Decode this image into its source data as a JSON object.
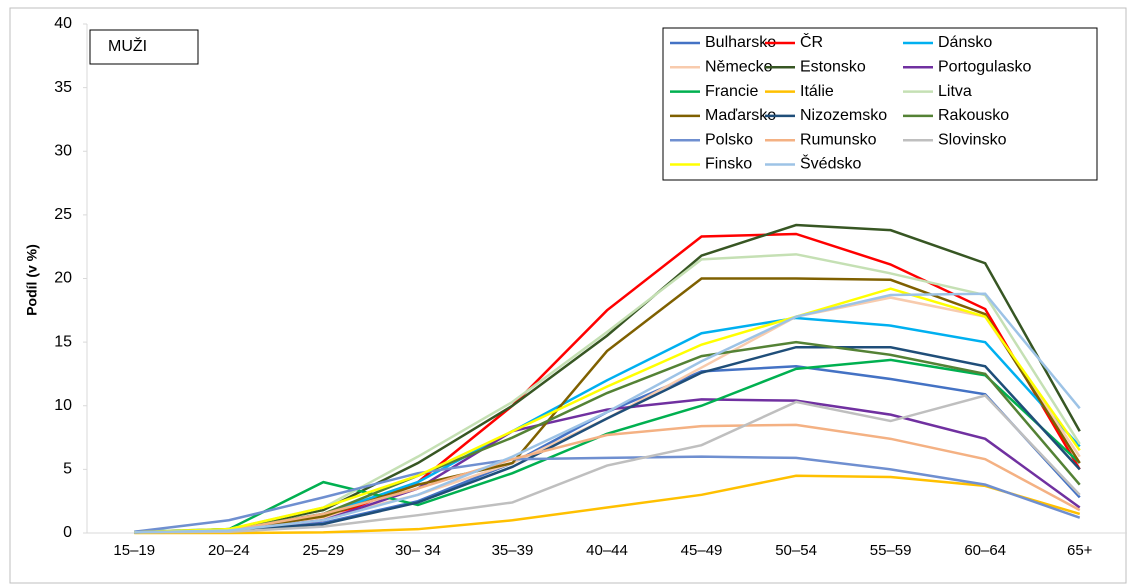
{
  "chart_data": {
    "type": "line",
    "annotation": "MUŽI",
    "y_label": "Podíl (v %)",
    "categories": [
      "15–19",
      "20–24",
      "25–29",
      "30– 34",
      "35–39",
      "40–44",
      "45–49",
      "50–54",
      "55–59",
      "60–64",
      "65+"
    ],
    "ylim": [
      0,
      40
    ],
    "yticks": [
      0,
      5,
      10,
      15,
      20,
      25,
      30,
      35,
      40
    ],
    "grid": false,
    "legend": "top-right",
    "series": [
      {
        "name": "Bulharsko",
        "color": "#4472c4",
        "values": [
          0.1,
          0.2,
          0.8,
          2.5,
          5.5,
          9.5,
          12.7,
          13.1,
          12.1,
          10.9,
          2.8
        ]
      },
      {
        "name": "ČR",
        "color": "#ff0000",
        "values": [
          0.05,
          0.2,
          1.0,
          4.0,
          10.0,
          17.5,
          23.3,
          23.5,
          21.1,
          17.6,
          5.0
        ]
      },
      {
        "name": "Dánsko",
        "color": "#00b0f0",
        "values": [
          0.05,
          0.2,
          1.5,
          4.0,
          8.0,
          12.0,
          15.7,
          16.9,
          16.3,
          15.0,
          6.8
        ]
      },
      {
        "name": "Německo",
        "color": "#f8cbad",
        "values": [
          0.05,
          0.2,
          1.2,
          3.0,
          5.5,
          9.0,
          13.0,
          17.0,
          18.5,
          17.0,
          6.0
        ]
      },
      {
        "name": "Estonsko",
        "color": "#375623",
        "values": [
          0.05,
          0.3,
          1.8,
          5.5,
          10.0,
          15.5,
          21.8,
          24.2,
          23.8,
          21.2,
          8.0
        ]
      },
      {
        "name": "Portogulasko",
        "color": "#7030a0",
        "values": [
          0.05,
          0.2,
          1.0,
          3.5,
          8.0,
          9.7,
          10.5,
          10.4,
          9.3,
          7.4,
          2.0
        ]
      },
      {
        "name": "Francie",
        "color": "#00b050",
        "values": [
          0.1,
          0.3,
          4.0,
          2.2,
          4.7,
          7.8,
          10.0,
          12.9,
          13.6,
          12.4,
          5.5
        ]
      },
      {
        "name": "Itálie",
        "color": "#ffc000",
        "values": [
          0,
          0,
          0.05,
          0.3,
          1.0,
          2.0,
          3.0,
          4.5,
          4.4,
          3.7,
          1.5
        ]
      },
      {
        "name": "Litva",
        "color": "#c5e0b4",
        "values": [
          0.1,
          0.3,
          2.0,
          6.0,
          10.3,
          15.8,
          21.5,
          21.9,
          20.4,
          18.7,
          7.0
        ]
      },
      {
        "name": "Maďarsko",
        "color": "#7f6000",
        "values": [
          0.05,
          0.2,
          1.3,
          3.8,
          5.5,
          14.3,
          20.0,
          20.0,
          19.9,
          17.2,
          5.5
        ]
      },
      {
        "name": "Nizozemsko",
        "color": "#1f4e79",
        "values": [
          0.05,
          0.2,
          0.7,
          2.4,
          5.2,
          9.0,
          12.6,
          14.6,
          14.6,
          13.1,
          5.0
        ]
      },
      {
        "name": "Rakousko",
        "color": "#548235",
        "values": [
          0.05,
          0.3,
          1.5,
          4.5,
          7.5,
          11.0,
          13.9,
          15.0,
          14.0,
          12.5,
          3.8
        ]
      },
      {
        "name": "Polsko",
        "color": "#6f8fd0",
        "values": [
          0.1,
          1.0,
          2.8,
          4.7,
          5.8,
          5.9,
          6.0,
          5.9,
          5.0,
          3.8,
          1.2
        ]
      },
      {
        "name": "Rumunsko",
        "color": "#f4b183",
        "values": [
          0.05,
          0.2,
          1.5,
          3.5,
          5.8,
          7.7,
          8.4,
          8.5,
          7.4,
          5.8,
          1.8
        ]
      },
      {
        "name": "Slovinsko",
        "color": "#bfbfbf",
        "values": [
          0.05,
          0.1,
          0.5,
          1.4,
          2.4,
          5.3,
          6.9,
          10.3,
          8.8,
          10.8,
          3.0
        ]
      },
      {
        "name": "Finsko",
        "color": "#ffff00",
        "values": [
          0.05,
          0.3,
          2.0,
          4.5,
          8.0,
          11.5,
          14.8,
          17.0,
          19.2,
          17.0,
          6.5
        ]
      },
      {
        "name": "Švédsko",
        "color": "#9dc3e6",
        "values": [
          0.05,
          0.2,
          1.0,
          3.0,
          6.0,
          9.5,
          13.5,
          17.0,
          18.7,
          18.8,
          9.8
        ]
      }
    ]
  }
}
